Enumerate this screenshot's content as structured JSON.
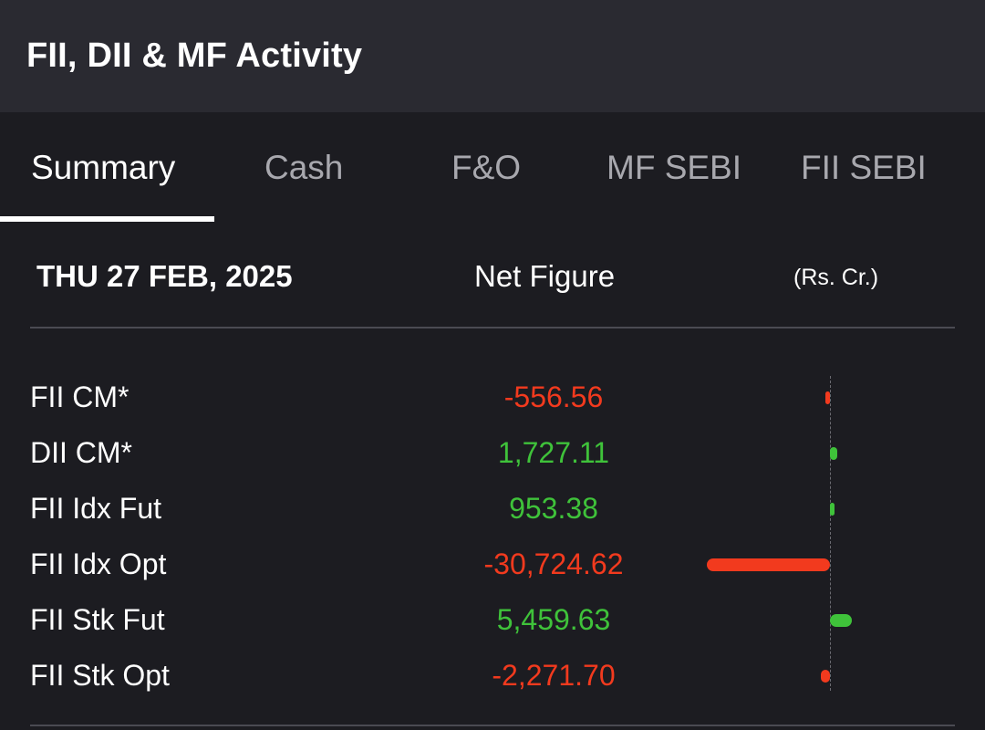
{
  "header": {
    "title": "FII, DII & MF Activity"
  },
  "tabs": [
    {
      "label": "Summary",
      "active": true
    },
    {
      "label": "Cash",
      "active": false
    },
    {
      "label": "F&O",
      "active": false
    },
    {
      "label": "MF SEBI",
      "active": false
    },
    {
      "label": "FII SEBI",
      "active": false
    }
  ],
  "summary": {
    "date": "THU 27 FEB, 2025",
    "net_label": "Net Figure",
    "unit": "(Rs. Cr.)"
  },
  "colors": {
    "positive": "#3fc23a",
    "negative": "#f23a1e"
  },
  "rows": [
    {
      "label": "FII CM*",
      "value_text": "-556.56",
      "value": -556.56
    },
    {
      "label": "DII CM*",
      "value_text": "1,727.11",
      "value": 1727.11
    },
    {
      "label": "FII Idx Fut",
      "value_text": "953.38",
      "value": 953.38
    },
    {
      "label": "FII Idx Opt",
      "value_text": "-30,724.62",
      "value": -30724.62
    },
    {
      "label": "FII Stk Fut",
      "value_text": "5,459.63",
      "value": 5459.63
    },
    {
      "label": "FII Stk Opt",
      "value_text": "-2,271.70",
      "value": -2271.7
    }
  ]
}
